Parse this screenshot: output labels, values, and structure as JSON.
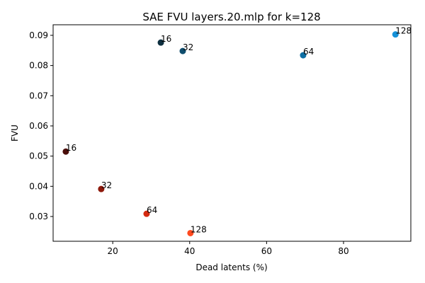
{
  "chart_data": {
    "type": "scatter",
    "title": "SAE FVU layers.20.mlp for k=128",
    "xlabel": "Dead latents (%)",
    "ylabel": "FVU",
    "xlim": [
      4.5,
      97.5
    ],
    "ylim": [
      0.0218,
      0.0935
    ],
    "x_ticks": [
      20,
      40,
      60,
      80
    ],
    "y_ticks": [
      0.03,
      0.04,
      0.05,
      0.06,
      0.07,
      0.08,
      0.09
    ],
    "x_tick_labels": [
      "20",
      "40",
      "60",
      "80"
    ],
    "y_tick_labels": [
      "0.03",
      "0.04",
      "0.05",
      "0.06",
      "0.07",
      "0.08",
      "0.09"
    ],
    "grid": false,
    "points": [
      {
        "x": 7.8,
        "y": 0.0515,
        "label": "16",
        "color": "#4a0e0a"
      },
      {
        "x": 17.0,
        "y": 0.0391,
        "label": "32",
        "color": "#8e1a0c"
      },
      {
        "x": 28.8,
        "y": 0.0309,
        "label": "64",
        "color": "#d42a10"
      },
      {
        "x": 40.2,
        "y": 0.0245,
        "label": "128",
        "color": "#ff4a1f"
      },
      {
        "x": 32.5,
        "y": 0.0876,
        "label": "16",
        "color": "#0e2f3f"
      },
      {
        "x": 38.2,
        "y": 0.0848,
        "label": "32",
        "color": "#0f4e6e"
      },
      {
        "x": 69.5,
        "y": 0.0834,
        "label": "64",
        "color": "#0d6ea3"
      },
      {
        "x": 93.5,
        "y": 0.0903,
        "label": "128",
        "color": "#1591d8"
      }
    ]
  }
}
